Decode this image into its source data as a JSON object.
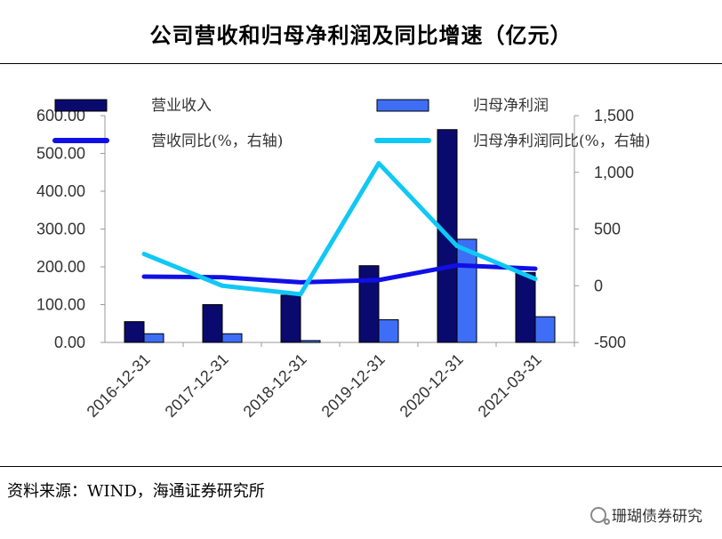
{
  "page": {
    "title": "公司营收和归母净利润及同比增速（亿元）",
    "source": "资料来源：WIND，海通证券研究所",
    "watermark": "珊瑚债券研究",
    "watermark_icon": "wechat-icon"
  },
  "chart_data": {
    "type": "bar",
    "title": "公司营收和归母净利润及同比增速（亿元）",
    "categories": [
      "2016-12-31",
      "2017-12-31",
      "2018-12-31",
      "2019-12-31",
      "2020-12-31",
      "2021-03-31"
    ],
    "y_left": {
      "min": 0,
      "max": 600,
      "ticks": [
        0,
        100,
        200,
        300,
        400,
        500,
        600
      ],
      "tick_labels": [
        "0.00",
        "100.00",
        "200.00",
        "300.00",
        "400.00",
        "500.00",
        "600.00"
      ]
    },
    "y_right": {
      "min": -500,
      "max": 1500,
      "ticks": [
        -500,
        0,
        500,
        1000,
        1500
      ],
      "tick_labels": [
        "-500",
        "0",
        "500",
        "1,000",
        "1,500"
      ]
    },
    "grid": false,
    "legend_position": "top",
    "series": [
      {
        "name": "营业收入",
        "type": "bar",
        "axis": "left",
        "color": "#0a0a6e",
        "values": [
          55,
          100,
          125,
          203,
          563,
          185
        ]
      },
      {
        "name": "归母净利润",
        "type": "bar",
        "axis": "left",
        "color": "#3d6ef5",
        "values": [
          23,
          23,
          5,
          60,
          273,
          68
        ]
      },
      {
        "name": "营收同比(%，右轴)",
        "type": "line",
        "axis": "right",
        "color": "#1010e6",
        "values": [
          80,
          75,
          30,
          50,
          180,
          150
        ]
      },
      {
        "name": "归母净利润同比(%，右轴)",
        "type": "line",
        "axis": "right",
        "color": "#10c8f5",
        "values": [
          280,
          0,
          -75,
          1080,
          350,
          60
        ]
      }
    ]
  }
}
